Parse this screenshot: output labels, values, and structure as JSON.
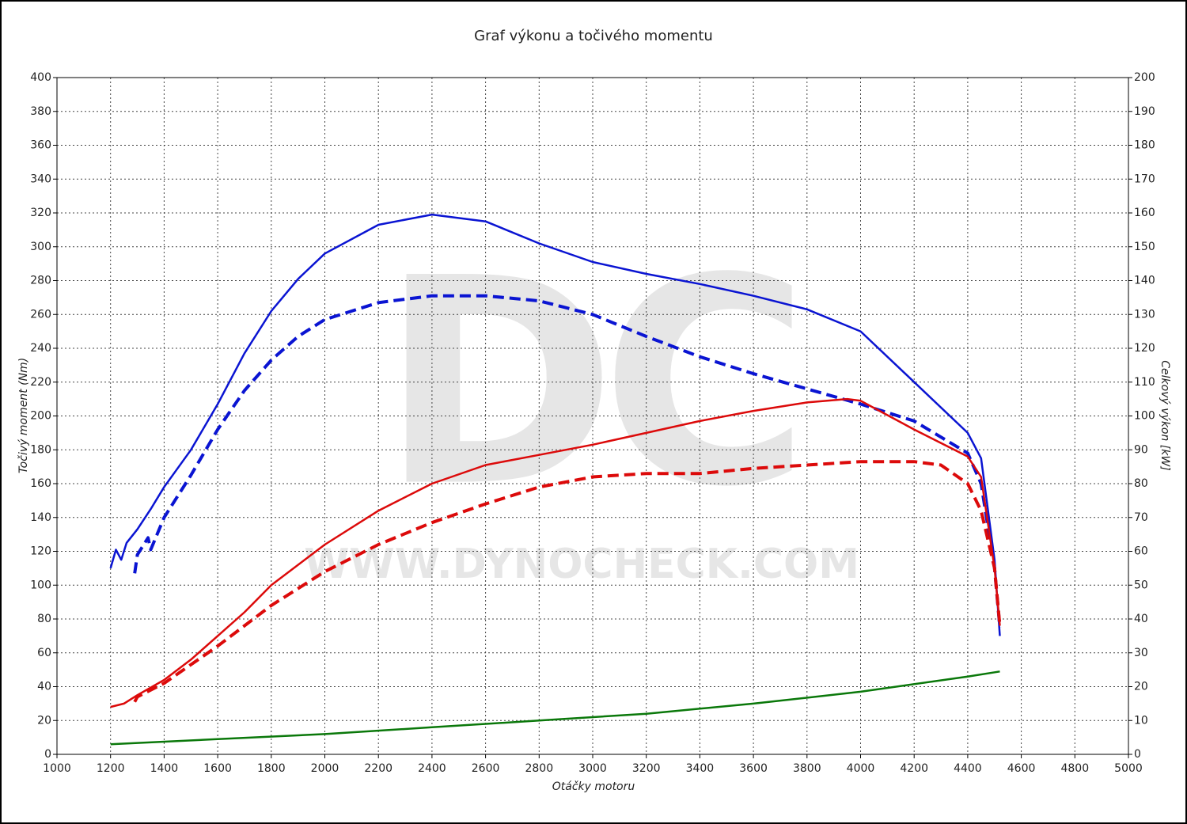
{
  "chart_data": {
    "type": "line",
    "title": "Graf výkonu a točivého momentu",
    "x_label": "Otáčky motoru",
    "y_label": "Točivý moment (Nm)",
    "y2_label": "Celkový výkon [kW]",
    "watermark": {
      "logo": "DC",
      "url": "WWW.DYNOCHECK.COM"
    },
    "xlim": [
      1000,
      5000
    ],
    "xticks": [
      1000,
      1200,
      1400,
      1600,
      1800,
      2000,
      2200,
      2400,
      2600,
      2800,
      3000,
      3200,
      3400,
      3600,
      3800,
      4000,
      4200,
      4400,
      4600,
      4800,
      5000
    ],
    "ylim": [
      0,
      400
    ],
    "yticks": [
      0,
      20,
      40,
      60,
      80,
      100,
      120,
      140,
      160,
      180,
      200,
      220,
      240,
      260,
      280,
      300,
      320,
      340,
      360,
      380,
      400
    ],
    "y2lim": [
      0,
      200
    ],
    "y2ticks": [
      0,
      10,
      20,
      30,
      40,
      50,
      60,
      70,
      80,
      90,
      100,
      110,
      120,
      130,
      140,
      150,
      160,
      170,
      180,
      190,
      200
    ],
    "grid": true,
    "series": [
      {
        "color": "#0a14d2",
        "style": "solid",
        "axis": "y",
        "x": [
          1200,
          1220,
          1240,
          1260,
          1300,
          1350,
          1400,
          1500,
          1600,
          1700,
          1800,
          1900,
          2000,
          2200,
          2400,
          2600,
          2800,
          3000,
          3200,
          3400,
          3600,
          3800,
          4000,
          4200,
          4400,
          4450,
          4500,
          4520
        ],
        "values": [
          110,
          121,
          115,
          125,
          133,
          145,
          158,
          180,
          207,
          237,
          262,
          281,
          296,
          313,
          319,
          315,
          302,
          291,
          284,
          278,
          271,
          263,
          250,
          220,
          190,
          175,
          115,
          70
        ]
      },
      {
        "color": "#0a14d2",
        "style": "dashed",
        "axis": "y",
        "x": [
          1290,
          1300,
          1340,
          1350,
          1400,
          1500,
          1600,
          1700,
          1800,
          1900,
          2000,
          2200,
          2400,
          2600,
          2800,
          3000,
          3200,
          3400,
          3600,
          3800,
          4000,
          4200,
          4400,
          4450,
          4500,
          4520
        ],
        "values": [
          107,
          118,
          128,
          121,
          140,
          165,
          192,
          215,
          233,
          247,
          257,
          267,
          271,
          271,
          268,
          260,
          247,
          235,
          225,
          216,
          207,
          197,
          178,
          160,
          110,
          75
        ]
      },
      {
        "color": "#dc0a0a",
        "style": "solid",
        "axis": "y2",
        "x": [
          1200,
          1250,
          1300,
          1400,
          1500,
          1600,
          1700,
          1800,
          2000,
          2200,
          2400,
          2600,
          2800,
          3000,
          3200,
          3400,
          3600,
          3800,
          3950,
          4000,
          4200,
          4400,
          4450,
          4500,
          4520
        ],
        "values": [
          14,
          15,
          17.5,
          22,
          28,
          35,
          42,
          50,
          62,
          72,
          80,
          85.5,
          88.5,
          91.5,
          95,
          98.5,
          101.5,
          104,
          105,
          104.5,
          96,
          88,
          82,
          55,
          38
        ]
      },
      {
        "color": "#dc0a0a",
        "style": "dashed",
        "axis": "y2",
        "x": [
          1290,
          1300,
          1400,
          1600,
          1800,
          2000,
          2200,
          2400,
          2600,
          2800,
          3000,
          3200,
          3400,
          3600,
          3800,
          4000,
          4200,
          4300,
          4400,
          4450,
          4500,
          4520
        ],
        "values": [
          15.5,
          17,
          21,
          32,
          44,
          54,
          62,
          68.5,
          74,
          79,
          82,
          83,
          83,
          84.5,
          85.5,
          86.5,
          86.5,
          85.5,
          80,
          72,
          55,
          38
        ]
      },
      {
        "color": "#0a780a",
        "style": "solid",
        "axis": "y2",
        "x": [
          1200,
          1600,
          2000,
          2400,
          2800,
          3200,
          3600,
          4000,
          4400,
          4520
        ],
        "values": [
          3,
          4.5,
          6,
          8,
          10,
          12,
          15,
          18.5,
          23,
          24.5
        ]
      }
    ]
  }
}
